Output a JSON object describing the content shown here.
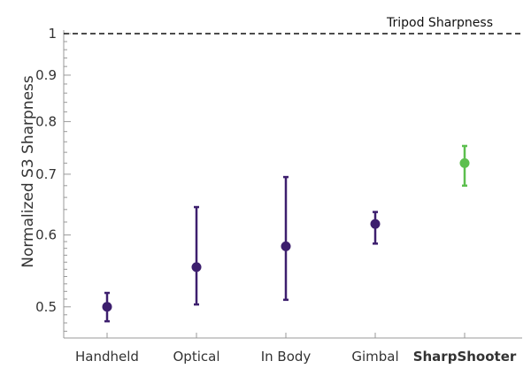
{
  "chart_data": {
    "type": "scatter",
    "xlabel": "",
    "ylabel": "Normalized S3 Sharpness",
    "ylim": [
      0.462,
      1.0
    ],
    "yscale": "log",
    "yticks_major": [
      0.5,
      0.6,
      0.7,
      0.8,
      0.9,
      1
    ],
    "ytick_labels": [
      "0.5",
      "0.6",
      "0.7",
      "0.8",
      "0.9",
      "1"
    ],
    "yticks_minor": [
      0.47,
      0.48,
      0.49,
      0.51,
      0.52,
      0.53,
      0.54,
      0.55,
      0.56,
      0.57,
      0.58,
      0.59,
      0.62,
      0.64,
      0.66,
      0.68,
      0.72,
      0.74,
      0.76,
      0.78,
      0.82,
      0.84,
      0.86,
      0.88,
      0.92,
      0.94,
      0.96,
      0.98
    ],
    "categories": [
      "Handheld",
      "Optical",
      "In Body",
      "Gimbal",
      "SharpShooter"
    ],
    "highlight_category": "SharpShooter",
    "series": [
      {
        "points": [
          {
            "category": "Handheld",
            "value": 0.5,
            "low": 0.482,
            "high": 0.518,
            "color": "#3d1f6e"
          },
          {
            "category": "Optical",
            "value": 0.553,
            "low": 0.503,
            "high": 0.644,
            "color": "#3d1f6e"
          },
          {
            "category": "In Body",
            "value": 0.583,
            "low": 0.509,
            "high": 0.695,
            "color": "#3d1f6e"
          },
          {
            "category": "Gimbal",
            "value": 0.617,
            "low": 0.587,
            "high": 0.636,
            "color": "#3d1f6e"
          },
          {
            "category": "SharpShooter",
            "value": 0.72,
            "low": 0.68,
            "high": 0.752,
            "color": "#5cbf4e"
          }
        ]
      }
    ],
    "reference_line": {
      "value": 1.0,
      "label": "Tripod Sharpness",
      "style": "dashed",
      "color": "#111111"
    },
    "grid": false,
    "colors": {
      "primary": "#3d1f6e",
      "highlight": "#5cbf4e",
      "axis": "#999999",
      "text": "#333333"
    }
  }
}
